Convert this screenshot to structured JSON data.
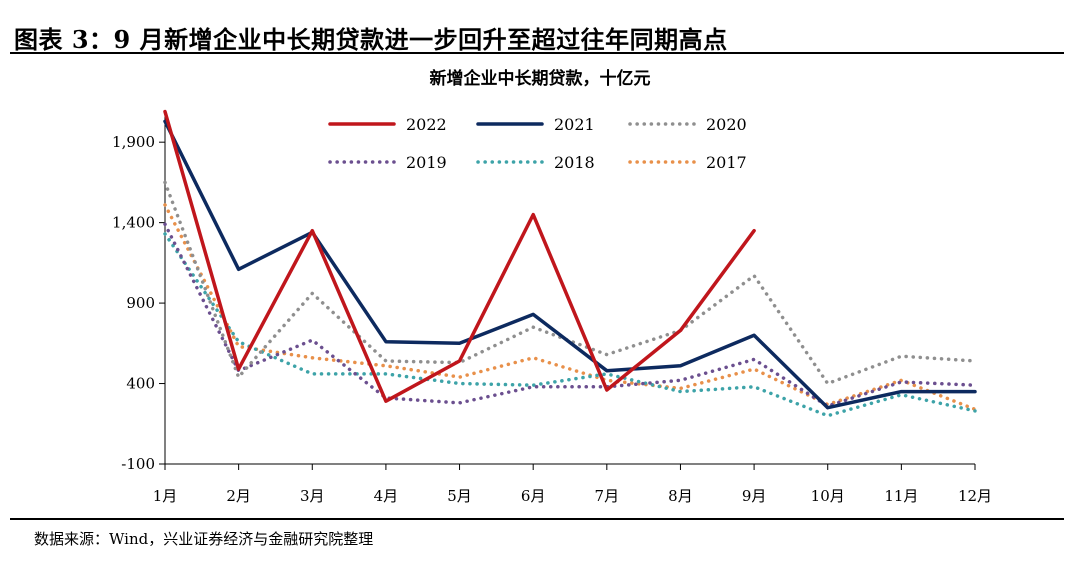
{
  "figure": {
    "title": "图表 3：9 月新增企业中长期贷款进一步回升至超过往年同期高点",
    "source": "数据来源：Wind，兴业证券经济与金融研究院整理"
  },
  "chart_data": {
    "type": "line",
    "title": "新增企业中长期贷款，十亿元",
    "xlabel": "",
    "ylabel": "",
    "categories": [
      "1月",
      "2月",
      "3月",
      "4月",
      "5月",
      "6月",
      "7月",
      "8月",
      "9月",
      "10月",
      "11月",
      "12月"
    ],
    "ylim": [
      -100,
      2100
    ],
    "yticks": [
      -100,
      400,
      900,
      1400,
      1900
    ],
    "ytick_labels": [
      "-100",
      "400",
      "900",
      "1,400",
      "1,900"
    ],
    "grid": false,
    "legend_position": "top",
    "series": [
      {
        "name": "2022",
        "color": "#c0161c",
        "style": "solid",
        "values": [
          2090,
          490,
          1350,
          290,
          540,
          1450,
          360,
          730,
          1350,
          null,
          null,
          null
        ]
      },
      {
        "name": "2021",
        "color": "#0d2a5f",
        "style": "solid",
        "values": [
          2030,
          1110,
          1340,
          660,
          650,
          830,
          480,
          510,
          700,
          250,
          350,
          350
        ]
      },
      {
        "name": "2020",
        "color": "#8f8f8f",
        "style": "dotted",
        "values": [
          1650,
          440,
          960,
          540,
          530,
          750,
          580,
          730,
          1070,
          400,
          570,
          540
        ]
      },
      {
        "name": "2019",
        "color": "#6b4f8f",
        "style": "dotted",
        "values": [
          1390,
          480,
          670,
          310,
          280,
          380,
          380,
          420,
          550,
          260,
          410,
          390
        ]
      },
      {
        "name": "2018",
        "color": "#3da3a8",
        "style": "dotted",
        "values": [
          1330,
          660,
          460,
          460,
          400,
          390,
          460,
          350,
          380,
          200,
          330,
          230
        ]
      },
      {
        "name": "2017",
        "color": "#e8904a",
        "style": "dotted",
        "values": [
          1510,
          630,
          560,
          510,
          440,
          560,
          420,
          370,
          490,
          270,
          420,
          240
        ]
      }
    ]
  }
}
